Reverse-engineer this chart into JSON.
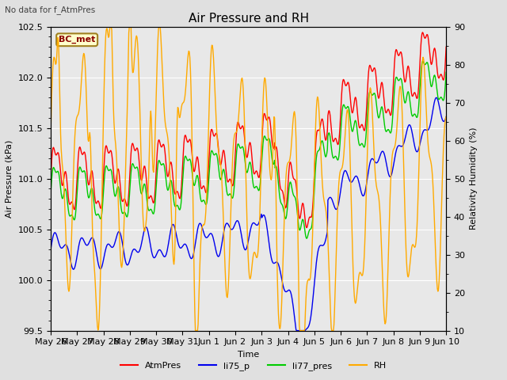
{
  "title": "Air Pressure and RH",
  "top_left_text": "No data for f_AtmPres",
  "xlabel": "Time",
  "ylabel_left": "Air Pressure (kPa)",
  "ylabel_right": "Relativity Humidity (%)",
  "ylim_left": [
    99.5,
    102.5
  ],
  "ylim_right": [
    10,
    90
  ],
  "fig_bg_color": "#e0e0e0",
  "plot_bg_color": "#d3d3d3",
  "plot_bg_inner": "#e8e8e8",
  "grid_color": "#ffffff",
  "box_label": "BC_met",
  "box_facecolor": "#ffffcc",
  "box_edgecolor": "#a08020",
  "box_textcolor": "#8b0000",
  "legend_labels": [
    "AtmPres",
    "li75_p",
    "li77_pres",
    "RH"
  ],
  "legend_colors": [
    "#ff0000",
    "#0000ee",
    "#00cc00",
    "#ffaa00"
  ],
  "line_width": 1.0,
  "xtick_labels": [
    "May 26",
    "May 27",
    "May 28",
    "May 29",
    "May 30",
    "May 31",
    "Jun 1",
    "Jun 2",
    "Jun 3",
    "Jun 4",
    "Jun 5",
    "Jun 6",
    "Jun 7",
    "Jun 8",
    "Jun 9",
    "Jun 10"
  ],
  "n_days": 15,
  "pts_per_day": 48
}
